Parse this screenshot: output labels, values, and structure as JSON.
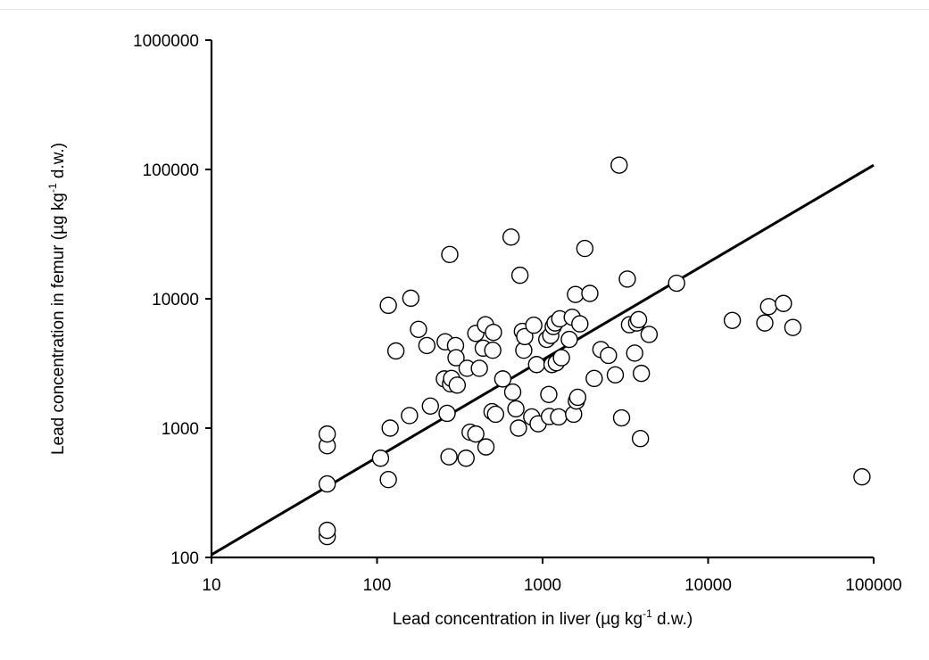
{
  "chart_data": {
    "type": "scatter",
    "xlabel": {
      "pre": "Lead concentration in liver (µg kg",
      "sup": "-1",
      "post": " d.w.)"
    },
    "ylabel": {
      "pre": "Lead concentration in femur  (µg kg",
      "sup": "-1",
      "post": " d.w.)"
    },
    "x_scale": "log",
    "y_scale": "log",
    "xlim": [
      10,
      100000
    ],
    "ylim": [
      100,
      1000000
    ],
    "x_ticks": [
      "10",
      "100",
      "1000",
      "10000",
      "100000"
    ],
    "y_ticks": [
      "100",
      "1000",
      "10000",
      "100000",
      "1000000"
    ],
    "grid": false,
    "legend": "none",
    "marker": {
      "shape": "circle",
      "fill": "#ffffff",
      "stroke": "#000000"
    },
    "line_color": "#000000",
    "trend_line": {
      "x": [
        10,
        100000
      ],
      "y": [
        105,
        108000
      ]
    },
    "points": [
      {
        "x": 50,
        "y": 145
      },
      {
        "x": 50,
        "y": 162
      },
      {
        "x": 50,
        "y": 370
      },
      {
        "x": 50,
        "y": 730
      },
      {
        "x": 50,
        "y": 900
      },
      {
        "x": 105,
        "y": 585
      },
      {
        "x": 117,
        "y": 400
      },
      {
        "x": 120,
        "y": 1000
      },
      {
        "x": 117,
        "y": 8900
      },
      {
        "x": 130,
        "y": 3950
      },
      {
        "x": 157,
        "y": 1250
      },
      {
        "x": 160,
        "y": 10100
      },
      {
        "x": 178,
        "y": 5800
      },
      {
        "x": 200,
        "y": 4350
      },
      {
        "x": 210,
        "y": 1480
      },
      {
        "x": 255,
        "y": 2400
      },
      {
        "x": 258,
        "y": 4650
      },
      {
        "x": 265,
        "y": 1300
      },
      {
        "x": 272,
        "y": 600
      },
      {
        "x": 275,
        "y": 22000
      },
      {
        "x": 278,
        "y": 2200
      },
      {
        "x": 282,
        "y": 2420
      },
      {
        "x": 298,
        "y": 4350
      },
      {
        "x": 300,
        "y": 3500
      },
      {
        "x": 305,
        "y": 2150
      },
      {
        "x": 345,
        "y": 585
      },
      {
        "x": 350,
        "y": 2900
      },
      {
        "x": 365,
        "y": 930
      },
      {
        "x": 395,
        "y": 900
      },
      {
        "x": 395,
        "y": 5400
      },
      {
        "x": 415,
        "y": 2900
      },
      {
        "x": 438,
        "y": 4150
      },
      {
        "x": 452,
        "y": 6300
      },
      {
        "x": 455,
        "y": 715
      },
      {
        "x": 495,
        "y": 1340
      },
      {
        "x": 500,
        "y": 4000
      },
      {
        "x": 505,
        "y": 5500
      },
      {
        "x": 520,
        "y": 1280
      },
      {
        "x": 575,
        "y": 2400
      },
      {
        "x": 645,
        "y": 30000
      },
      {
        "x": 660,
        "y": 1900
      },
      {
        "x": 690,
        "y": 1410
      },
      {
        "x": 715,
        "y": 1000
      },
      {
        "x": 730,
        "y": 15200
      },
      {
        "x": 755,
        "y": 5600
      },
      {
        "x": 770,
        "y": 4000
      },
      {
        "x": 780,
        "y": 5100
      },
      {
        "x": 860,
        "y": 1220
      },
      {
        "x": 885,
        "y": 6250
      },
      {
        "x": 920,
        "y": 3100
      },
      {
        "x": 940,
        "y": 1080
      },
      {
        "x": 1060,
        "y": 4850
      },
      {
        "x": 1090,
        "y": 1820
      },
      {
        "x": 1100,
        "y": 1230
      },
      {
        "x": 1120,
        "y": 5200
      },
      {
        "x": 1140,
        "y": 3100
      },
      {
        "x": 1160,
        "y": 6100
      },
      {
        "x": 1190,
        "y": 6500
      },
      {
        "x": 1210,
        "y": 3200
      },
      {
        "x": 1250,
        "y": 1220
      },
      {
        "x": 1270,
        "y": 7000
      },
      {
        "x": 1300,
        "y": 3500
      },
      {
        "x": 1450,
        "y": 4850
      },
      {
        "x": 1510,
        "y": 7200
      },
      {
        "x": 1540,
        "y": 1280
      },
      {
        "x": 1580,
        "y": 10800
      },
      {
        "x": 1600,
        "y": 1620
      },
      {
        "x": 1630,
        "y": 1730
      },
      {
        "x": 1680,
        "y": 6400
      },
      {
        "x": 1800,
        "y": 24500
      },
      {
        "x": 1930,
        "y": 11000
      },
      {
        "x": 2050,
        "y": 2420
      },
      {
        "x": 2250,
        "y": 4050
      },
      {
        "x": 2500,
        "y": 3650
      },
      {
        "x": 2750,
        "y": 2580
      },
      {
        "x": 2900,
        "y": 108000
      },
      {
        "x": 3000,
        "y": 1200
      },
      {
        "x": 3250,
        "y": 14200
      },
      {
        "x": 3350,
        "y": 6300
      },
      {
        "x": 3600,
        "y": 3800
      },
      {
        "x": 3700,
        "y": 6500
      },
      {
        "x": 3800,
        "y": 6900
      },
      {
        "x": 3900,
        "y": 830
      },
      {
        "x": 3950,
        "y": 2650
      },
      {
        "x": 4400,
        "y": 5300
      },
      {
        "x": 6450,
        "y": 13200
      },
      {
        "x": 14000,
        "y": 6800
      },
      {
        "x": 22000,
        "y": 6500
      },
      {
        "x": 23200,
        "y": 8700
      },
      {
        "x": 28500,
        "y": 9200
      },
      {
        "x": 32500,
        "y": 6000
      },
      {
        "x": 85000,
        "y": 420
      }
    ]
  }
}
